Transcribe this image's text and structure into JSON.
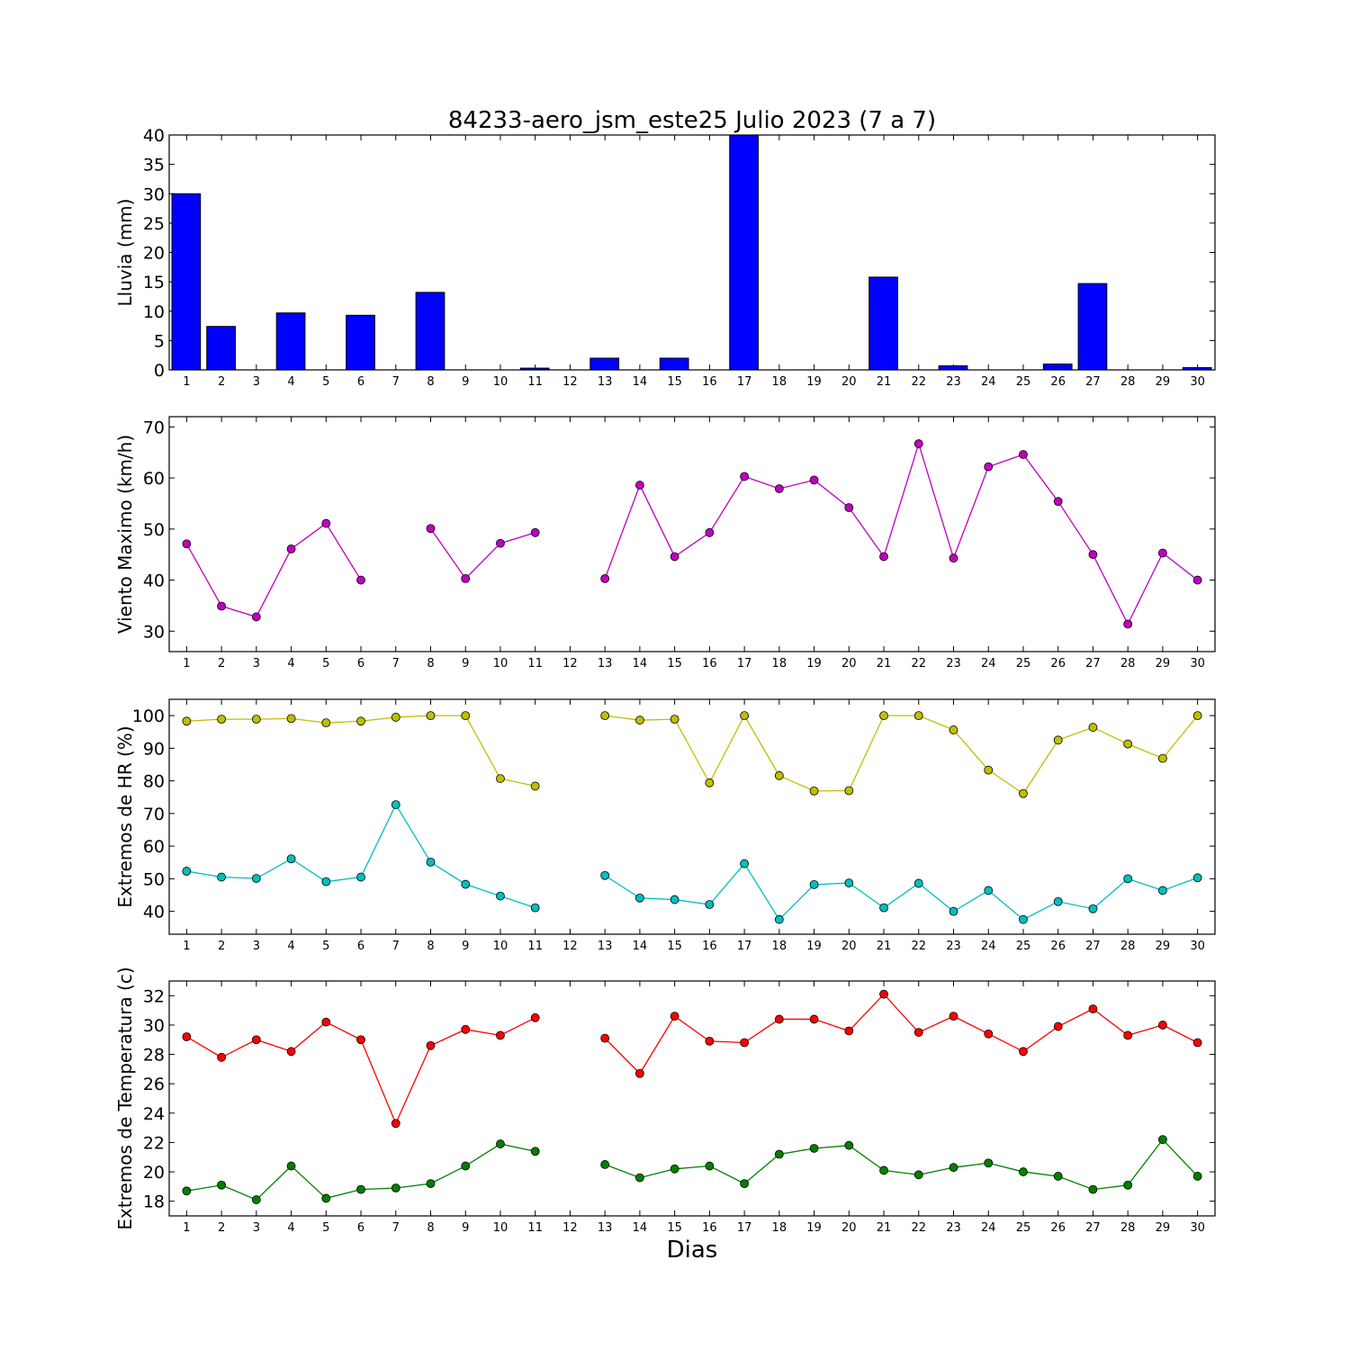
{
  "title": "84233-aero_jsm_este25 Julio 2023  (7 a 7)",
  "xlabel": "Dias",
  "chart_data": [
    {
      "type": "bar",
      "ylabel": "Lluvia (mm)",
      "ylim": [
        0,
        40
      ],
      "yticks": [
        0,
        5,
        10,
        15,
        20,
        25,
        30,
        35,
        40
      ],
      "categories": [
        1,
        2,
        3,
        4,
        5,
        6,
        7,
        8,
        9,
        10,
        11,
        12,
        13,
        14,
        15,
        16,
        17,
        18,
        19,
        20,
        21,
        22,
        23,
        24,
        25,
        26,
        27,
        28,
        29,
        30
      ],
      "series": [
        {
          "color": "#0000ff",
          "values": [
            30,
            7.4,
            0,
            9.7,
            0,
            9.3,
            0,
            13.2,
            0,
            0,
            0.3,
            0,
            2,
            0,
            2,
            0,
            40,
            0,
            0,
            0,
            15.8,
            0,
            0.7,
            0,
            0,
            1,
            14.7,
            0,
            0,
            0.4
          ]
        }
      ]
    },
    {
      "type": "line",
      "ylabel": "Viento Maximo (km/h)",
      "ylim": [
        26,
        72
      ],
      "yticks": [
        30,
        40,
        50,
        60,
        70
      ],
      "x": [
        1,
        2,
        3,
        4,
        5,
        6,
        7,
        8,
        9,
        10,
        11,
        12,
        13,
        14,
        15,
        16,
        17,
        18,
        19,
        20,
        21,
        22,
        23,
        24,
        25,
        26,
        27,
        28,
        29,
        30
      ],
      "series": [
        {
          "color": "#bf00bf",
          "values": [
            47.1,
            34.9,
            32.8,
            46.1,
            51.1,
            40,
            null,
            50.1,
            40.3,
            47.2,
            49.3,
            null,
            40.3,
            58.6,
            44.6,
            49.3,
            60.3,
            57.9,
            59.6,
            54.2,
            44.6,
            66.7,
            44.3,
            62.2,
            64.6,
            55.4,
            45,
            31.4,
            45.3,
            40
          ]
        }
      ]
    },
    {
      "type": "line",
      "ylabel": "Extremos de HR (%)",
      "ylim": [
        33,
        105
      ],
      "yticks": [
        40,
        50,
        60,
        70,
        80,
        90,
        100
      ],
      "x": [
        1,
        2,
        3,
        4,
        5,
        6,
        7,
        8,
        9,
        10,
        11,
        12,
        13,
        14,
        15,
        16,
        17,
        18,
        19,
        20,
        21,
        22,
        23,
        24,
        25,
        26,
        27,
        28,
        29,
        30
      ],
      "series": [
        {
          "color": "#bfbf00",
          "values": [
            98.3,
            98.9,
            98.9,
            99.1,
            97.8,
            98.3,
            99.5,
            100,
            100,
            80.7,
            78.4,
            null,
            100,
            98.6,
            98.9,
            79.4,
            100,
            81.6,
            76.9,
            77,
            100,
            100,
            95.6,
            83.3,
            76.1,
            92.5,
            96.4,
            91.3,
            86.9,
            100
          ]
        },
        {
          "color": "#00bfbf",
          "values": [
            52.3,
            50.5,
            50.1,
            56.1,
            49.1,
            50.5,
            72.7,
            55.1,
            48.3,
            44.7,
            41.1,
            null,
            51,
            44.1,
            43.6,
            42.1,
            54.6,
            37.5,
            48.2,
            48.7,
            41.1,
            48.6,
            40,
            46.4,
            37.5,
            43,
            40.8,
            50,
            46.4,
            50.3
          ]
        }
      ]
    },
    {
      "type": "line",
      "ylabel": "Extremos de Temperatura (c)",
      "ylim": [
        17,
        33
      ],
      "yticks": [
        18,
        20,
        22,
        24,
        26,
        28,
        30,
        32
      ],
      "x": [
        1,
        2,
        3,
        4,
        5,
        6,
        7,
        8,
        9,
        10,
        11,
        12,
        13,
        14,
        15,
        16,
        17,
        18,
        19,
        20,
        21,
        22,
        23,
        24,
        25,
        26,
        27,
        28,
        29,
        30
      ],
      "series": [
        {
          "color": "#ff0000",
          "values": [
            29.2,
            27.8,
            29,
            28.2,
            30.2,
            29,
            23.3,
            28.6,
            29.7,
            29.3,
            30.5,
            null,
            29.1,
            26.7,
            30.6,
            28.9,
            28.8,
            30.4,
            30.4,
            29.6,
            32.1,
            29.5,
            30.6,
            29.4,
            28.2,
            29.9,
            31.1,
            29.3,
            30,
            28.8
          ]
        },
        {
          "color": "#008000",
          "values": [
            18.7,
            19.1,
            18.1,
            20.4,
            18.2,
            18.8,
            18.9,
            19.2,
            20.4,
            21.9,
            21.4,
            null,
            20.5,
            19.6,
            20.2,
            20.4,
            19.2,
            21.2,
            21.6,
            21.8,
            20.1,
            19.8,
            20.3,
            20.6,
            20,
            19.7,
            18.8,
            19.1,
            22.2,
            19.7
          ]
        }
      ]
    }
  ]
}
